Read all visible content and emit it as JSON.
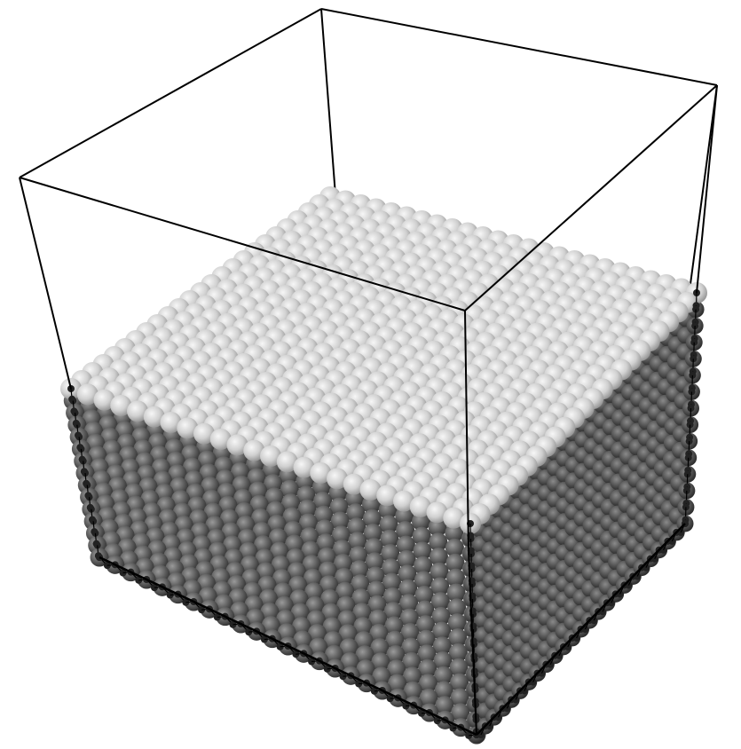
{
  "scene": {
    "subject": "atomic-lattice-slab-in-simulation-box",
    "background_color": "#ffffff",
    "box_edge_color": "#000000",
    "top_surface_atom_color": "#d2d2d2",
    "side_atom_color": "#5e5e5e",
    "edge_node_color": "#222222",
    "lattice_sites_per_edge": 24,
    "side_layers": 14
  }
}
